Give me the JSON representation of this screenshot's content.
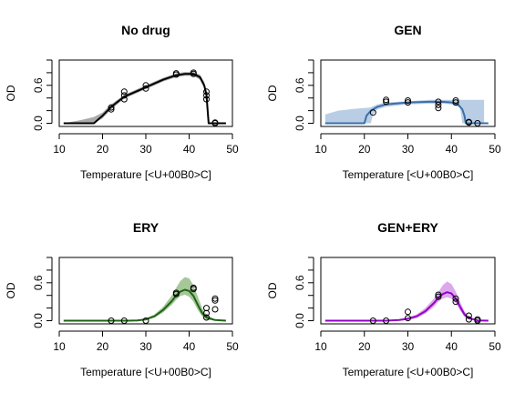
{
  "chart_data": [
    {
      "type": "line",
      "title": "No drug",
      "xlabel": "Temperature [<U+00B0>C]",
      "ylabel": "OD",
      "xlim": [
        10,
        50
      ],
      "ylim": [
        -0.05,
        1.0
      ],
      "xticks": [
        "10",
        "20",
        "30",
        "40",
        "50"
      ],
      "yticks": [
        "0.0",
        "0.6"
      ],
      "ytick_values": [
        0.0,
        0.6
      ],
      "grid": false,
      "fit_color": "#000000",
      "band_color": "#aaaaaa",
      "fit": {
        "x": [
          11,
          18,
          20,
          22,
          25,
          30,
          34,
          37,
          39,
          41,
          42.5,
          43.5,
          44,
          44.5,
          45,
          48.5
        ],
        "y": [
          0.0,
          0.0,
          0.12,
          0.26,
          0.42,
          0.57,
          0.69,
          0.76,
          0.78,
          0.78,
          0.73,
          0.6,
          0.45,
          0.0,
          0.0,
          0.0
        ]
      },
      "band": {
        "x": [
          11,
          15,
          18,
          20,
          22,
          25,
          30,
          34,
          37,
          39,
          41,
          42.5,
          43.5,
          44,
          44.5,
          45,
          48.5
        ],
        "lower": [
          0.0,
          0.0,
          0.0,
          0.08,
          0.22,
          0.39,
          0.54,
          0.66,
          0.73,
          0.75,
          0.75,
          0.69,
          0.55,
          0.38,
          0.0,
          0.0,
          0.0
        ],
        "upper": [
          0.0,
          0.05,
          0.1,
          0.17,
          0.3,
          0.45,
          0.6,
          0.72,
          0.79,
          0.81,
          0.81,
          0.77,
          0.65,
          0.5,
          0.0,
          0.0,
          0.0
        ]
      },
      "points": {
        "x": [
          22,
          22,
          25,
          25,
          25,
          30,
          30,
          37,
          37,
          41,
          41,
          44,
          44,
          44,
          46,
          46
        ],
        "y": [
          0.22,
          0.25,
          0.38,
          0.44,
          0.5,
          0.55,
          0.6,
          0.77,
          0.79,
          0.78,
          0.8,
          0.38,
          0.44,
          0.5,
          0.0,
          0.01
        ]
      }
    },
    {
      "type": "line",
      "title": "GEN",
      "xlabel": "Temperature [<U+00B0>C]",
      "ylabel": "OD",
      "xlim": [
        10,
        50
      ],
      "ylim": [
        -0.05,
        1.0
      ],
      "xticks": [
        "10",
        "20",
        "30",
        "40",
        "50"
      ],
      "yticks": [
        "0.0",
        "0.6"
      ],
      "ytick_values": [
        0.0,
        0.6
      ],
      "grid": false,
      "fit_color": "#3a6faa",
      "band_color": "#b9cde5",
      "fit": {
        "x": [
          11,
          20,
          20.5,
          21.5,
          23,
          25,
          30,
          35,
          38,
          40,
          41.5,
          42.5,
          43,
          43.3,
          44,
          48.5
        ],
        "y": [
          0.0,
          0.0,
          0.12,
          0.2,
          0.26,
          0.3,
          0.33,
          0.34,
          0.34,
          0.33,
          0.3,
          0.22,
          0.12,
          0.0,
          0.0,
          0.0
        ]
      },
      "band": {
        "x": [
          11,
          14,
          18,
          21.5,
          22,
          23,
          25,
          30,
          35,
          38,
          40,
          42,
          42.5,
          43,
          44,
          46,
          47.5
        ],
        "lower": [
          0.0,
          0.0,
          0.0,
          0.0,
          0.15,
          0.22,
          0.26,
          0.3,
          0.31,
          0.31,
          0.3,
          0.25,
          0.0,
          0.0,
          0.0,
          0.0,
          0.0
        ],
        "upper": [
          0.14,
          0.2,
          0.23,
          0.25,
          0.27,
          0.3,
          0.33,
          0.35,
          0.37,
          0.37,
          0.37,
          0.37,
          0.37,
          0.37,
          0.37,
          0.37,
          0.37
        ]
      },
      "points": {
        "x": [
          22,
          25,
          25,
          30,
          30,
          37,
          37,
          37,
          41,
          41,
          44,
          44,
          46
        ],
        "y": [
          0.17,
          0.34,
          0.37,
          0.33,
          0.36,
          0.24,
          0.29,
          0.34,
          0.33,
          0.36,
          0.01,
          0.02,
          0.0
        ]
      }
    },
    {
      "type": "line",
      "title": "ERY",
      "xlabel": "Temperature [<U+00B0>C]",
      "ylabel": "OD",
      "xlim": [
        10,
        50
      ],
      "ylim": [
        -0.05,
        1.0
      ],
      "xticks": [
        "10",
        "20",
        "30",
        "40",
        "50"
      ],
      "yticks": [
        "0.0",
        "0.6"
      ],
      "ytick_values": [
        0.0,
        0.6
      ],
      "grid": false,
      "fit_color": "#1e6414",
      "band_color": "#a6c79a",
      "fit": {
        "x": [
          11,
          26,
          28,
          30,
          32,
          34,
          36,
          37,
          38,
          39,
          40,
          41,
          42,
          43,
          44,
          46,
          48.5
        ],
        "y": [
          0.0,
          0.0,
          0.005,
          0.02,
          0.07,
          0.17,
          0.31,
          0.4,
          0.46,
          0.49,
          0.47,
          0.39,
          0.25,
          0.12,
          0.05,
          0.01,
          0.0
        ]
      },
      "band": {
        "x": [
          11,
          26,
          28,
          30,
          32,
          34,
          36,
          37,
          38,
          39,
          40,
          41,
          42,
          43,
          44,
          46,
          48.5
        ],
        "lower": [
          0.0,
          0.0,
          0.0,
          0.01,
          0.05,
          0.13,
          0.25,
          0.33,
          0.39,
          0.41,
          0.38,
          0.3,
          0.17,
          0.07,
          0.02,
          0.0,
          0.0
        ],
        "upper": [
          0.0,
          0.0,
          0.01,
          0.04,
          0.1,
          0.22,
          0.4,
          0.52,
          0.63,
          0.69,
          0.67,
          0.56,
          0.38,
          0.2,
          0.09,
          0.02,
          0.0
        ]
      },
      "points": {
        "x": [
          22,
          25,
          30,
          37,
          37,
          41,
          41,
          44,
          44,
          44,
          46,
          46,
          46
        ],
        "y": [
          0.0,
          0.0,
          0.0,
          0.42,
          0.44,
          0.5,
          0.52,
          0.05,
          0.12,
          0.2,
          0.18,
          0.32,
          0.35
        ]
      }
    },
    {
      "type": "line",
      "title": "GEN+ERY",
      "xlabel": "Temperature [<U+00B0>C]",
      "ylabel": "OD",
      "xlim": [
        10,
        50
      ],
      "ylim": [
        -0.05,
        1.0
      ],
      "xticks": [
        "10",
        "20",
        "30",
        "40",
        "50"
      ],
      "yticks": [
        "0.0",
        "0.6"
      ],
      "ytick_values": [
        0.0,
        0.6
      ],
      "grid": false,
      "fit_color": "#9400c8",
      "band_color": "#dca8ec",
      "fit": {
        "x": [
          11,
          25,
          28,
          30,
          32,
          34,
          36,
          37,
          38,
          39,
          40,
          41,
          42,
          43,
          44,
          46,
          48.5
        ],
        "y": [
          0.0,
          0.0,
          0.01,
          0.03,
          0.07,
          0.15,
          0.28,
          0.36,
          0.42,
          0.45,
          0.43,
          0.35,
          0.22,
          0.1,
          0.04,
          0.005,
          0.0
        ]
      },
      "band": {
        "x": [
          11,
          25,
          28,
          30,
          32,
          34,
          36,
          37,
          38,
          39,
          40,
          41,
          42,
          43,
          44,
          46,
          48.5
        ],
        "lower": [
          0.0,
          0.0,
          0.0,
          0.01,
          0.04,
          0.11,
          0.22,
          0.3,
          0.35,
          0.37,
          0.35,
          0.28,
          0.16,
          0.06,
          0.02,
          0.0,
          0.0
        ],
        "upper": [
          0.0,
          0.0,
          0.02,
          0.05,
          0.1,
          0.2,
          0.35,
          0.45,
          0.56,
          0.62,
          0.58,
          0.46,
          0.3,
          0.15,
          0.06,
          0.01,
          0.0
        ]
      },
      "points": {
        "x": [
          22,
          25,
          30,
          30,
          37,
          37,
          41,
          41,
          44,
          44,
          46,
          46
        ],
        "y": [
          0.0,
          0.0,
          0.04,
          0.14,
          0.38,
          0.41,
          0.3,
          0.35,
          0.02,
          0.08,
          0.0,
          0.02
        ]
      }
    }
  ]
}
